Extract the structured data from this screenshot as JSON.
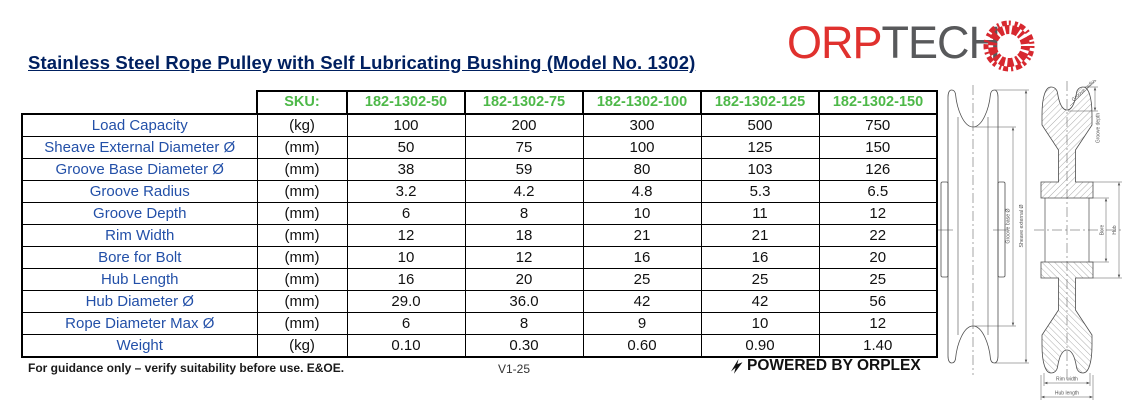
{
  "theme": {
    "navy": "#002060",
    "blue": "#2350a8",
    "green": "#4db848",
    "red": "#e0312e",
    "gray": "#58595b"
  },
  "page": {
    "title": "Stainless Steel Rope Pulley with Self Lubricating Bushing (Model No. 1302)"
  },
  "logo": {
    "part1": "ORP",
    "part2": "TECH",
    "mark_icon": "gear-burst-icon"
  },
  "table": {
    "sku_label": "SKU:",
    "skus": [
      "182-1302-50",
      "182-1302-75",
      "182-1302-100",
      "182-1302-125",
      "182-1302-150"
    ],
    "rows": [
      {
        "label": "Load Capacity",
        "unit": "(kg)",
        "values": [
          "100",
          "200",
          "300",
          "500",
          "750"
        ]
      },
      {
        "label": "Sheave External Diameter Ø",
        "unit": "(mm)",
        "values": [
          "50",
          "75",
          "100",
          "125",
          "150"
        ]
      },
      {
        "label": "Groove Base Diameter Ø",
        "unit": "(mm)",
        "values": [
          "38",
          "59",
          "80",
          "103",
          "126"
        ]
      },
      {
        "label": "Groove Radius",
        "unit": "(mm)",
        "values": [
          "3.2",
          "4.2",
          "4.8",
          "5.3",
          "6.5"
        ]
      },
      {
        "label": "Groove Depth",
        "unit": "(mm)",
        "values": [
          "6",
          "8",
          "10",
          "11",
          "12"
        ]
      },
      {
        "label": "Rim Width",
        "unit": "(mm)",
        "values": [
          "12",
          "18",
          "21",
          "21",
          "22"
        ]
      },
      {
        "label": "Bore for Bolt",
        "unit": "(mm)",
        "values": [
          "10",
          "12",
          "16",
          "16",
          "20"
        ]
      },
      {
        "label": "Hub Length",
        "unit": "(mm)",
        "values": [
          "16",
          "20",
          "25",
          "25",
          "25"
        ]
      },
      {
        "label": "Hub Diameter Ø",
        "unit": "(mm)",
        "values": [
          "29.0",
          "36.0",
          "42",
          "42",
          "56"
        ]
      },
      {
        "label": "Rope Diameter Max Ø",
        "unit": "(mm)",
        "values": [
          "6",
          "8",
          "9",
          "10",
          "12"
        ]
      },
      {
        "label": "Weight",
        "unit": "(kg)",
        "values": [
          "0.10",
          "0.30",
          "0.60",
          "0.90",
          "1.40"
        ]
      }
    ]
  },
  "footer": {
    "disclaimer": "For guidance only – verify suitability before use. E&OE.",
    "version": "V1-25",
    "powered_by": "POWERED BY ORPLEX",
    "powered_icon": "lightning-bolt-icon"
  },
  "drawing": {
    "labels": {
      "groove_base": "Groove base Ø",
      "sheave_external": "Sheave external Ø",
      "groove_radius": "Groove radius",
      "groove_depth": "Groove depth",
      "bore": "Bore",
      "hub": "Hub",
      "rim_width": "Rim width",
      "hub_length": "Hub length"
    }
  }
}
